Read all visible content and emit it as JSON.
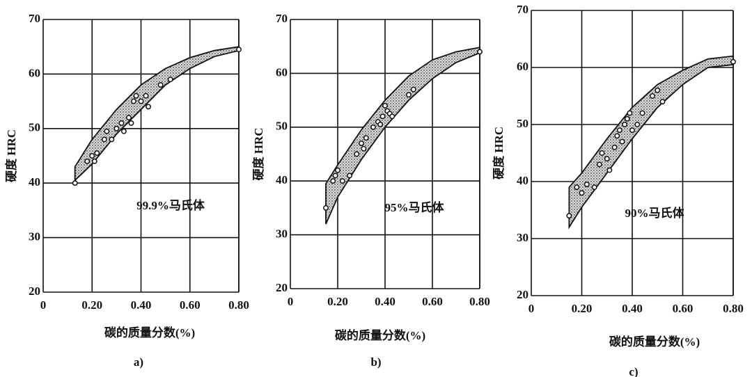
{
  "chart_data": [
    {
      "type": "scatter",
      "panel_label": "a)",
      "annotation": "99.9%马氏体",
      "xlabel": "碳的质量分数(%)",
      "ylabel": "硬度 HRC",
      "xlim": [
        0,
        0.8
      ],
      "ylim": [
        20,
        70
      ],
      "xticks": [
        0,
        {
          "value": 0.2,
          "label": "0.20"
        },
        {
          "value": 0.4,
          "label": "0.40"
        },
        {
          "value": 0.6,
          "label": "0.60"
        },
        {
          "value": 0.8,
          "label": "0.80"
        }
      ],
      "yticks": [
        20,
        30,
        40,
        50,
        60,
        70
      ],
      "grid": true,
      "x": [
        0.13,
        0.18,
        0.2,
        0.21,
        0.22,
        0.25,
        0.26,
        0.28,
        0.3,
        0.32,
        0.33,
        0.35,
        0.36,
        0.37,
        0.38,
        0.4,
        0.42,
        0.43,
        0.48,
        0.52,
        0.8
      ],
      "values": [
        40,
        44,
        45,
        44,
        45.5,
        48,
        49.5,
        48,
        50,
        51,
        49.5,
        52,
        51,
        55,
        56,
        55,
        56,
        54,
        58,
        59,
        64.5
      ],
      "band": {
        "x": [
          0.13,
          0.2,
          0.3,
          0.4,
          0.5,
          0.6,
          0.7,
          0.8
        ],
        "upper": [
          43,
          48,
          53.5,
          58,
          61,
          63,
          64.3,
          65
        ],
        "lower": [
          40.5,
          43.5,
          49,
          53.5,
          58,
          61,
          63.2,
          64.3
        ]
      }
    },
    {
      "type": "scatter",
      "panel_label": "b)",
      "annotation": "95%马氏体",
      "xlabel": "碳的质量分数(%)",
      "ylabel": "硬度 HRC",
      "xlim": [
        0,
        0.8
      ],
      "ylim": [
        20,
        70
      ],
      "xticks": [
        0,
        {
          "value": 0.2,
          "label": "0.20"
        },
        {
          "value": 0.4,
          "label": "0.40"
        },
        {
          "value": 0.6,
          "label": "0.60"
        },
        {
          "value": 0.8,
          "label": "0.80"
        }
      ],
      "yticks": [
        20,
        30,
        40,
        50,
        60,
        70
      ],
      "grid": true,
      "x": [
        0.15,
        0.18,
        0.19,
        0.2,
        0.22,
        0.25,
        0.28,
        0.3,
        0.31,
        0.32,
        0.35,
        0.37,
        0.38,
        0.39,
        0.4,
        0.41,
        0.42,
        0.43,
        0.5,
        0.52,
        0.8
      ],
      "values": [
        35,
        40,
        41,
        42,
        40,
        41,
        45,
        47,
        46,
        48,
        50,
        51,
        50.5,
        52,
        54,
        53,
        52.5,
        52,
        56,
        57,
        64
      ],
      "band": {
        "x": [
          0.15,
          0.2,
          0.3,
          0.4,
          0.5,
          0.6,
          0.7,
          0.8
        ],
        "upper": [
          39.5,
          43,
          49.5,
          55,
          59.5,
          62.5,
          64,
          64.8
        ],
        "lower": [
          32,
          37,
          44,
          50,
          55,
          59,
          62,
          63.8
        ]
      }
    },
    {
      "type": "scatter",
      "panel_label": "c)",
      "annotation": "90%马氏体",
      "xlabel": "碳的质量分数(%)",
      "ylabel": "硬度 HRC",
      "xlim": [
        0,
        0.8
      ],
      "ylim": [
        20,
        70
      ],
      "xticks": [
        0,
        {
          "value": 0.2,
          "label": "0.20"
        },
        {
          "value": 0.4,
          "label": "0.40"
        },
        {
          "value": 0.6,
          "label": "0.60"
        },
        {
          "value": 0.8,
          "label": "0.80"
        }
      ],
      "yticks": [
        20,
        30,
        40,
        50,
        60,
        70
      ],
      "grid": true,
      "x": [
        0.15,
        0.18,
        0.2,
        0.22,
        0.25,
        0.27,
        0.28,
        0.3,
        0.31,
        0.33,
        0.34,
        0.35,
        0.36,
        0.37,
        0.38,
        0.39,
        0.4,
        0.42,
        0.44,
        0.48,
        0.5,
        0.52,
        0.8
      ],
      "values": [
        34,
        39,
        38,
        39.5,
        39,
        43,
        45,
        44,
        42,
        46,
        48,
        49,
        47,
        50,
        51,
        52,
        49,
        50,
        52,
        55,
        56,
        54,
        61
      ],
      "band": {
        "x": [
          0.15,
          0.2,
          0.3,
          0.4,
          0.5,
          0.6,
          0.7,
          0.8
        ],
        "upper": [
          39,
          41.5,
          47.5,
          53,
          57,
          59.5,
          61.5,
          62
        ],
        "lower": [
          32,
          35.5,
          41.5,
          47.5,
          53,
          57,
          60,
          60.5
        ]
      }
    }
  ]
}
